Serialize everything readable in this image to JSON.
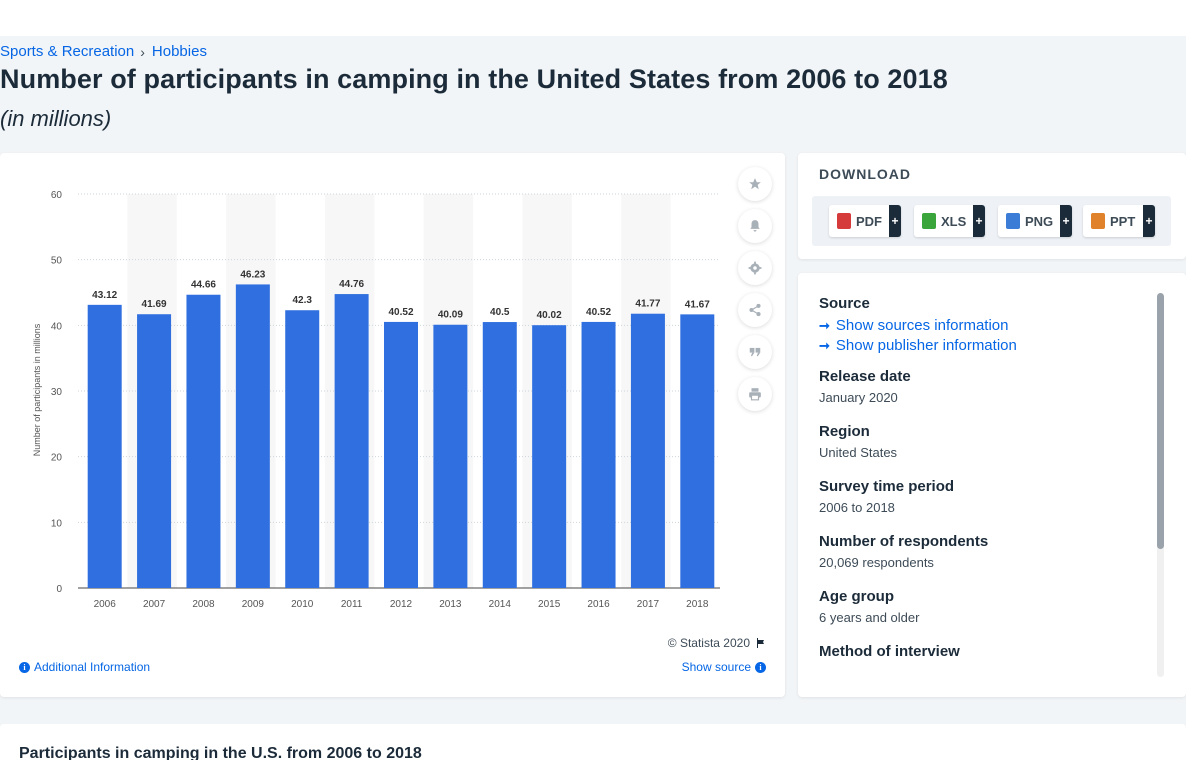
{
  "breadcrumb": {
    "items": [
      "Sports & Recreation",
      "Hobbies"
    ],
    "separator": "›"
  },
  "page": {
    "title": "Number of participants in camping in the United States from 2006 to 2018",
    "subtitle": "(in millions)"
  },
  "chart_data": {
    "type": "bar",
    "categories": [
      "2006",
      "2007",
      "2008",
      "2009",
      "2010",
      "2011",
      "2012",
      "2013",
      "2014",
      "2015",
      "2016",
      "2017",
      "2018"
    ],
    "values": [
      43.12,
      41.69,
      44.66,
      46.23,
      42.3,
      44.76,
      40.52,
      40.09,
      40.5,
      40.02,
      40.52,
      41.77,
      41.67
    ],
    "value_labels": [
      "43.12",
      "41.69",
      "44.66",
      "46.23",
      "42.3",
      "44.76",
      "40.52",
      "40.09",
      "40.5",
      "40.02",
      "40.52",
      "41.77",
      "41.67"
    ],
    "ylabel": "Number of participants in millions",
    "xlabel": "",
    "ylim": [
      0,
      60
    ],
    "yticks": [
      0,
      10,
      20,
      30,
      40,
      50,
      60
    ],
    "grid": true,
    "bar_color": "#2f6fdf",
    "band_color": "#f7f7f7"
  },
  "chart_footer": {
    "copyright": "© Statista 2020",
    "additional_info": "Additional Information",
    "show_source": "Show source"
  },
  "tools": [
    "star-icon",
    "bell-icon",
    "gear-icon",
    "share-icon",
    "quote-icon",
    "print-icon"
  ],
  "download": {
    "title": "DOWNLOAD",
    "buttons": [
      {
        "label": "PDF",
        "plus": "+",
        "color": "#d63b3b"
      },
      {
        "label": "XLS",
        "plus": "+",
        "color": "#3aa53a"
      },
      {
        "label": "PNG",
        "plus": "+",
        "color": "#3b7dd6"
      },
      {
        "label": "PPT",
        "plus": "+",
        "color": "#e0822c"
      }
    ]
  },
  "metadata": {
    "source_label": "Source",
    "show_sources": "Show sources information",
    "show_publisher": "Show publisher information",
    "items": [
      {
        "label": "Release date",
        "value": "January 2020"
      },
      {
        "label": "Region",
        "value": "United States"
      },
      {
        "label": "Survey time period",
        "value": "2006 to 2018"
      },
      {
        "label": "Number of respondents",
        "value": "20,069 respondents"
      },
      {
        "label": "Age group",
        "value": "6 years and older"
      },
      {
        "label": "Method of interview",
        "value": ""
      }
    ]
  },
  "related": {
    "title": "Participants in camping in the U.S. from 2006 to 2018"
  }
}
